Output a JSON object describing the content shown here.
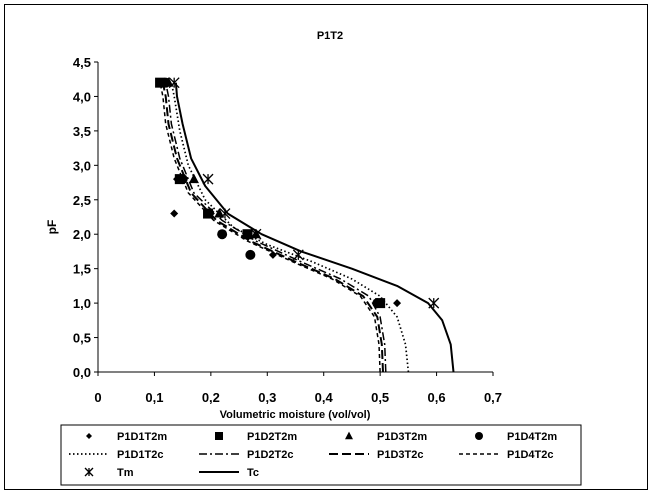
{
  "chart_data": {
    "type": "scatter",
    "title": "P1T2",
    "xlabel": "Volumetric moisture (vol/vol)",
    "ylabel": "pF",
    "xlim": [
      0,
      0.7
    ],
    "ylim": [
      0,
      4.5
    ],
    "xticks": [
      "0",
      "0,1",
      "0,2",
      "0,3",
      "0,4",
      "0,5",
      "0,6",
      "0,7"
    ],
    "yticks": [
      "0,0",
      "0,5",
      "1,0",
      "1,5",
      "2,0",
      "2,5",
      "3,0",
      "3,5",
      "4,0",
      "4,5"
    ],
    "grid": false,
    "legend_position": "bottom",
    "series": [
      {
        "name": "P1D1T2m",
        "kind": "marker",
        "marker": "diamond",
        "points": [
          [
            0.12,
            4.2
          ],
          [
            0.14,
            2.8
          ],
          [
            0.135,
            2.3
          ],
          [
            0.2,
            2.3
          ],
          [
            0.22,
            2.0
          ],
          [
            0.31,
            1.7
          ],
          [
            0.53,
            1.0
          ]
        ]
      },
      {
        "name": "P1D2T2m",
        "kind": "marker",
        "marker": "square",
        "points": [
          [
            0.11,
            4.2
          ],
          [
            0.145,
            2.8
          ],
          [
            0.195,
            2.3
          ],
          [
            0.265,
            2.0
          ],
          [
            0.5,
            1.0
          ]
        ]
      },
      {
        "name": "P1D3T2m",
        "kind": "marker",
        "marker": "triangle",
        "points": [
          [
            0.125,
            4.2
          ],
          [
            0.17,
            2.8
          ],
          [
            0.215,
            2.3
          ],
          [
            0.28,
            2.0
          ],
          [
            0.5,
            1.0
          ]
        ]
      },
      {
        "name": "P1D4T2m",
        "kind": "marker",
        "marker": "circle",
        "points": [
          [
            0.12,
            4.2
          ],
          [
            0.15,
            2.8
          ],
          [
            0.22,
            2.0
          ],
          [
            0.27,
            1.7
          ],
          [
            0.495,
            1.0
          ]
        ]
      },
      {
        "name": "P1D1T2c",
        "kind": "line",
        "dash": "dot",
        "points": [
          [
            0.55,
            0.0
          ],
          [
            0.545,
            0.4
          ],
          [
            0.53,
            0.8
          ],
          [
            0.5,
            1.1
          ],
          [
            0.45,
            1.35
          ],
          [
            0.38,
            1.6
          ],
          [
            0.3,
            1.85
          ],
          [
            0.24,
            2.1
          ],
          [
            0.19,
            2.5
          ],
          [
            0.16,
            3.0
          ],
          [
            0.145,
            3.5
          ],
          [
            0.135,
            4.0
          ],
          [
            0.13,
            4.2
          ]
        ]
      },
      {
        "name": "P1D2T2c",
        "kind": "line",
        "dash": "dashdot",
        "points": [
          [
            0.51,
            0.0
          ],
          [
            0.508,
            0.4
          ],
          [
            0.5,
            0.8
          ],
          [
            0.48,
            1.1
          ],
          [
            0.43,
            1.35
          ],
          [
            0.36,
            1.6
          ],
          [
            0.28,
            1.9
          ],
          [
            0.22,
            2.2
          ],
          [
            0.17,
            2.6
          ],
          [
            0.145,
            3.1
          ],
          [
            0.13,
            3.6
          ],
          [
            0.125,
            4.0
          ],
          [
            0.12,
            4.2
          ]
        ]
      },
      {
        "name": "P1D3T2c",
        "kind": "line",
        "dash": "dash",
        "points": [
          [
            0.505,
            0.0
          ],
          [
            0.503,
            0.4
          ],
          [
            0.495,
            0.8
          ],
          [
            0.47,
            1.1
          ],
          [
            0.42,
            1.35
          ],
          [
            0.35,
            1.6
          ],
          [
            0.27,
            1.9
          ],
          [
            0.21,
            2.2
          ],
          [
            0.165,
            2.6
          ],
          [
            0.14,
            3.1
          ],
          [
            0.125,
            3.6
          ],
          [
            0.12,
            4.0
          ],
          [
            0.115,
            4.2
          ]
        ]
      },
      {
        "name": "P1D4T2c",
        "kind": "line",
        "dash": "shortdash",
        "points": [
          [
            0.5,
            0.0
          ],
          [
            0.498,
            0.4
          ],
          [
            0.49,
            0.8
          ],
          [
            0.465,
            1.1
          ],
          [
            0.415,
            1.35
          ],
          [
            0.345,
            1.6
          ],
          [
            0.265,
            1.9
          ],
          [
            0.205,
            2.2
          ],
          [
            0.16,
            2.6
          ],
          [
            0.135,
            3.1
          ],
          [
            0.12,
            3.6
          ],
          [
            0.115,
            4.0
          ],
          [
            0.11,
            4.2
          ]
        ]
      },
      {
        "name": "Tm",
        "kind": "marker",
        "marker": "star",
        "points": [
          [
            0.135,
            4.2
          ],
          [
            0.195,
            2.8
          ],
          [
            0.225,
            2.3
          ],
          [
            0.28,
            2.0
          ],
          [
            0.355,
            1.7
          ],
          [
            0.595,
            1.0
          ]
        ]
      },
      {
        "name": "Tc",
        "kind": "line",
        "dash": "solid",
        "points": [
          [
            0.63,
            0.0
          ],
          [
            0.625,
            0.4
          ],
          [
            0.61,
            0.75
          ],
          [
            0.585,
            1.0
          ],
          [
            0.53,
            1.25
          ],
          [
            0.45,
            1.5
          ],
          [
            0.36,
            1.75
          ],
          [
            0.29,
            2.0
          ],
          [
            0.23,
            2.3
          ],
          [
            0.19,
            2.7
          ],
          [
            0.165,
            3.1
          ],
          [
            0.15,
            3.6
          ],
          [
            0.14,
            4.0
          ],
          [
            0.138,
            4.2
          ]
        ]
      }
    ]
  }
}
